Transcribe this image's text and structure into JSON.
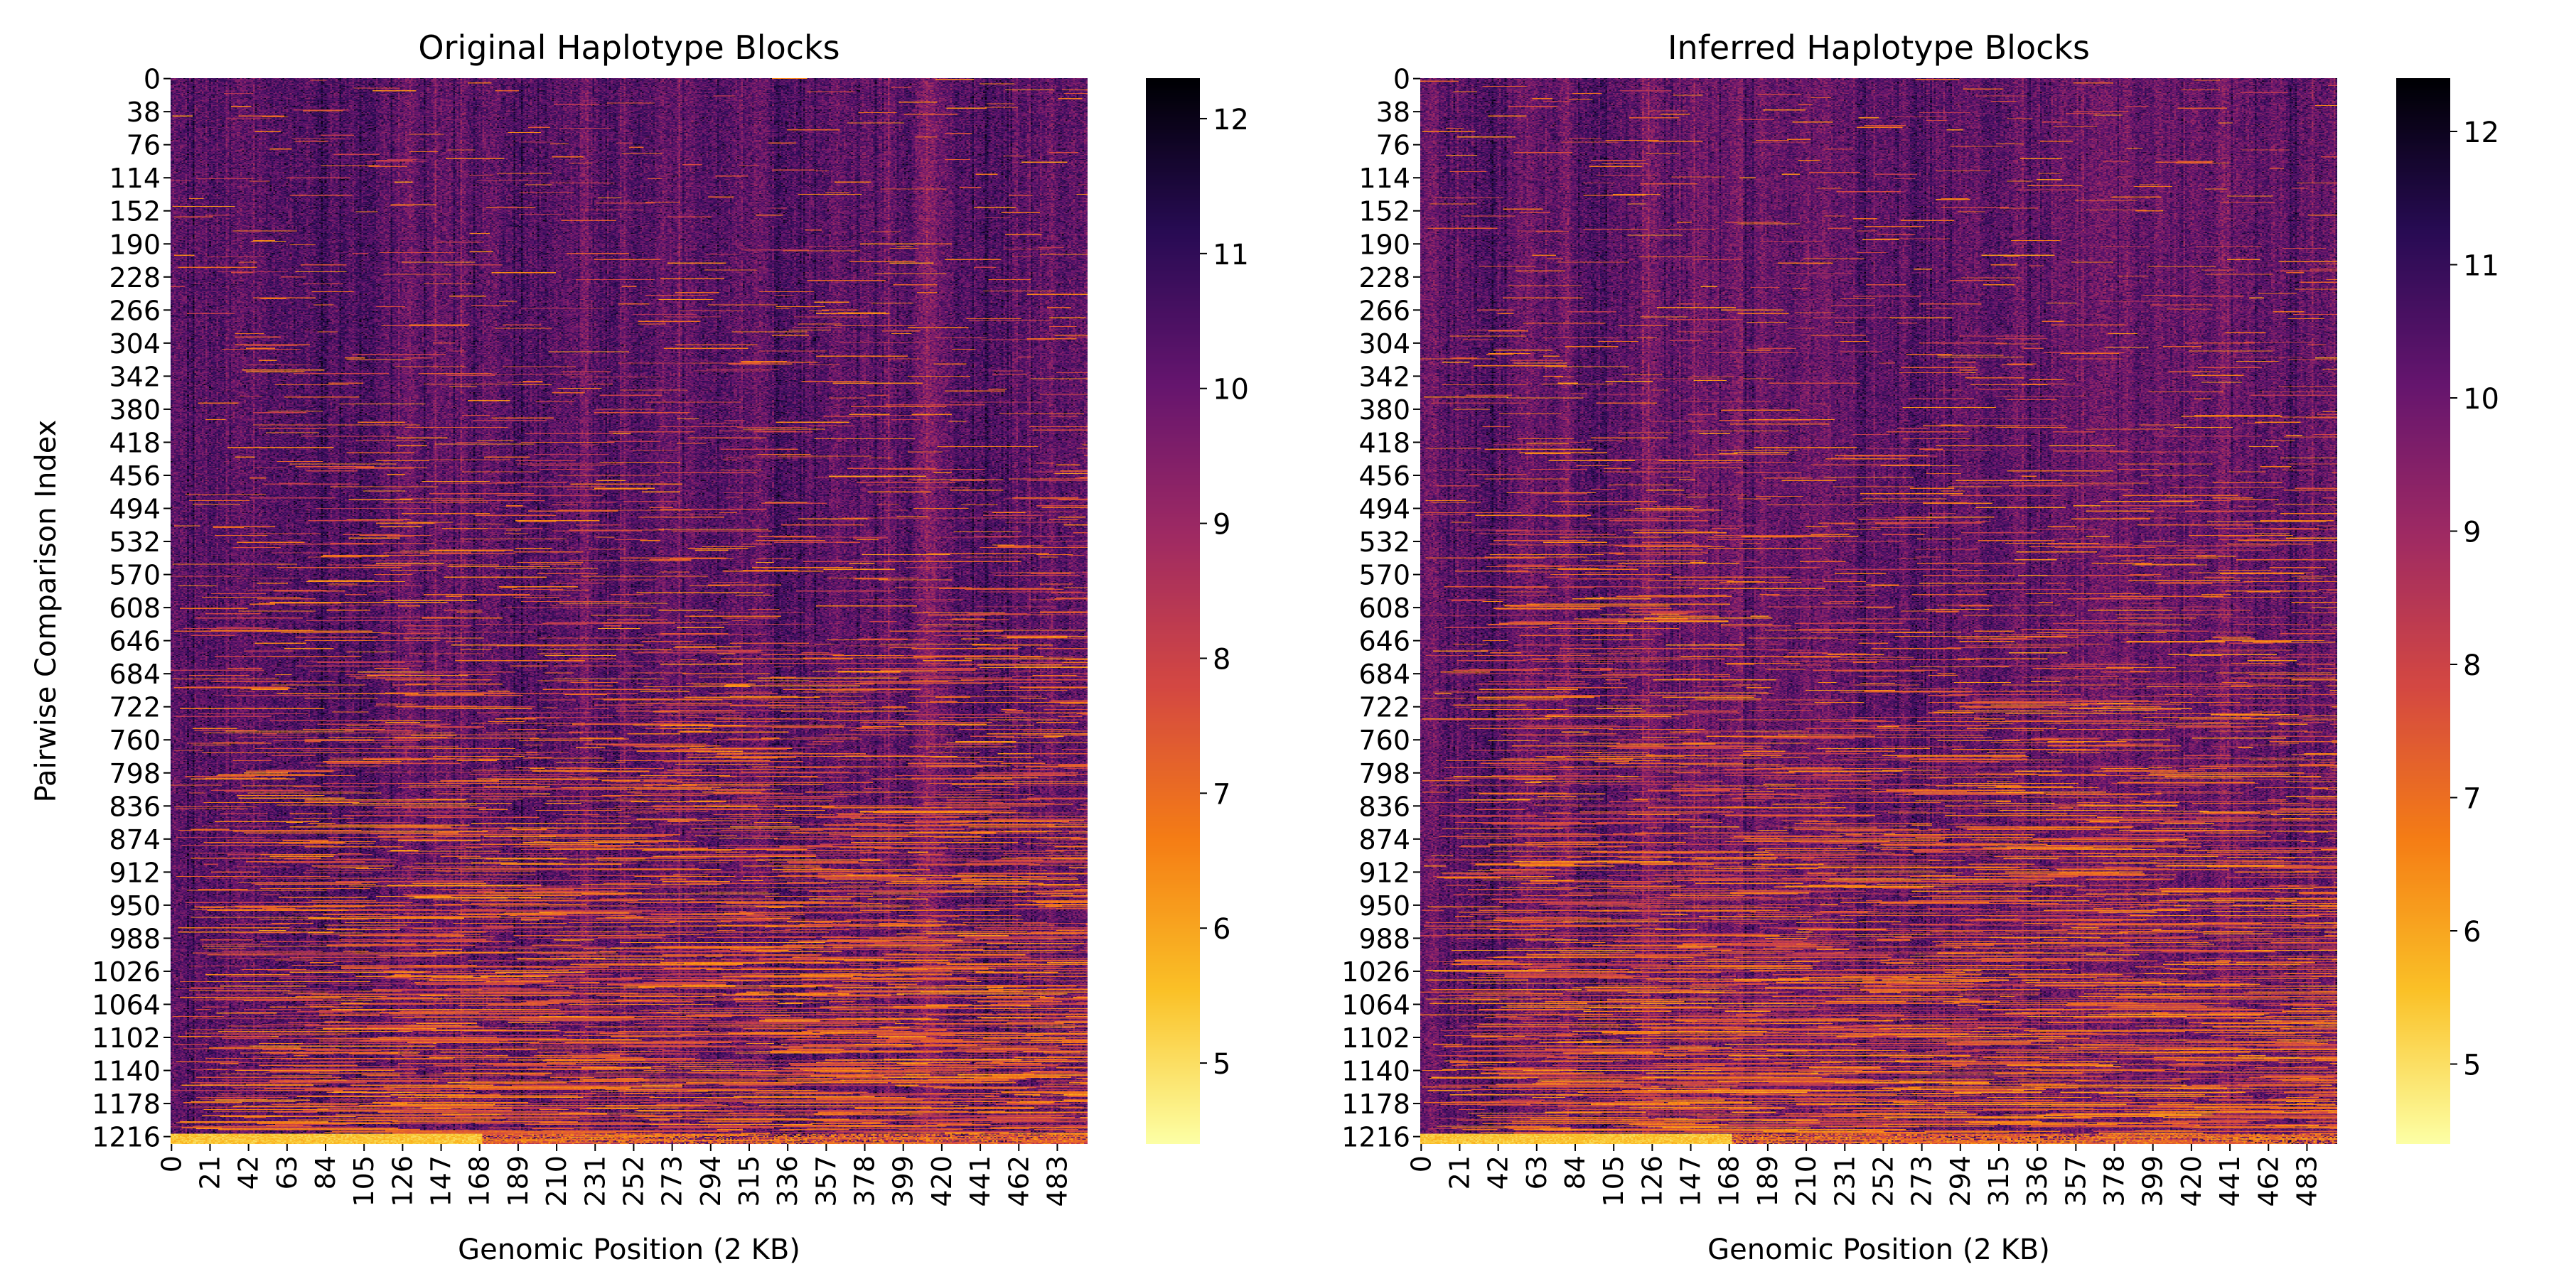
{
  "chart_data": [
    {
      "type": "heatmap",
      "title": "Original Haplotype Blocks",
      "xlabel": "Genomic Position (2 KB)",
      "ylabel": "Pairwise Comparison Index",
      "x_ticks": [
        "0",
        "21",
        "42",
        "63",
        "84",
        "105",
        "126",
        "147",
        "168",
        "189",
        "210",
        "231",
        "252",
        "273",
        "294",
        "315",
        "336",
        "357",
        "378",
        "399",
        "420",
        "441",
        "462",
        "483"
      ],
      "y_ticks": [
        "0",
        "38",
        "76",
        "114",
        "152",
        "190",
        "228",
        "266",
        "304",
        "342",
        "380",
        "418",
        "456",
        "494",
        "532",
        "570",
        "608",
        "646",
        "684",
        "722",
        "760",
        "798",
        "836",
        "874",
        "912",
        "950",
        "988",
        "1026",
        "1064",
        "1102",
        "1140",
        "1178",
        "1216"
      ],
      "x_range": [
        0,
        500
      ],
      "y_range": [
        0,
        1225
      ],
      "colorbar": {
        "min": 4.4,
        "max": 12.3,
        "ticks": [
          5,
          6,
          7,
          8,
          9,
          10,
          11,
          12
        ],
        "colormap": "inferno_r"
      },
      "seed": 7
    },
    {
      "type": "heatmap",
      "title": "Inferred Haplotype Blocks",
      "xlabel": "Genomic Position (2 KB)",
      "ylabel": "",
      "x_ticks": [
        "0",
        "21",
        "42",
        "63",
        "84",
        "105",
        "126",
        "147",
        "168",
        "189",
        "210",
        "231",
        "252",
        "273",
        "294",
        "315",
        "336",
        "357",
        "378",
        "399",
        "420",
        "441",
        "462",
        "483"
      ],
      "y_ticks": [
        "0",
        "38",
        "76",
        "114",
        "152",
        "190",
        "228",
        "266",
        "304",
        "342",
        "380",
        "418",
        "456",
        "494",
        "532",
        "570",
        "608",
        "646",
        "684",
        "722",
        "760",
        "798",
        "836",
        "874",
        "912",
        "950",
        "988",
        "1026",
        "1064",
        "1102",
        "1140",
        "1178",
        "1216"
      ],
      "x_range": [
        0,
        500
      ],
      "y_range": [
        0,
        1225
      ],
      "colorbar": {
        "min": 4.4,
        "max": 12.4,
        "ticks": [
          5,
          6,
          7,
          8,
          9,
          10,
          11,
          12
        ],
        "colormap": "inferno_r"
      },
      "seed": 11
    }
  ]
}
